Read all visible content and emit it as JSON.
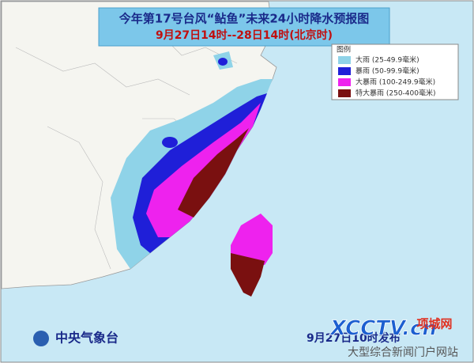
{
  "header": {
    "title": "今年第17号台风“鲇鱼”未来24小时降水预报图",
    "subtitle": "9月27日14时--28日14时(北京时)"
  },
  "legend": {
    "title": "图例",
    "items": [
      {
        "label": "大雨 (25-49.9毫米)",
        "color": "#8fd3e8"
      },
      {
        "label": "暴雨 (50-99.9毫米)",
        "color": "#1f1fd8"
      },
      {
        "label": "大暴雨 (100-249.9毫米)",
        "color": "#ee22ee"
      },
      {
        "label": "特大暴雨 (250-400毫米)",
        "color": "#7a1010"
      }
    ]
  },
  "footer": {
    "agency": "中央气象台",
    "issued": "9月27日10时发布"
  },
  "watermark": {
    "logo": "XCCTV.cn",
    "site": "项城网",
    "slogan": "大型综合新闻门户网站"
  }
}
